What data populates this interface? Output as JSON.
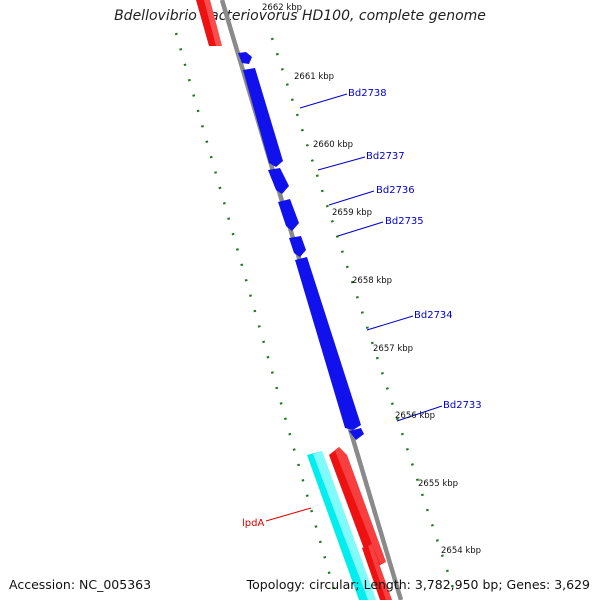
{
  "map": {
    "title": "Bdellovibrio bacteriovorus HD100, complete genome",
    "accession": "Accession: NC_005363",
    "summary": "Topology: circular; Length: 3,782,950 bp; Genes: 3,629",
    "colors": {
      "forward_gene": "#ee1111",
      "reverse_gene": "#1111ee",
      "rna_gene": "#00eeee",
      "backbone": "#888888",
      "ticks": "#1a7a1a",
      "forward_label": "#dd0000",
      "reverse_label": "#0000cc"
    },
    "ticks": [
      {
        "label": "2662 kbp"
      },
      {
        "label": "2661 kbp"
      },
      {
        "label": "2660 kbp"
      },
      {
        "label": "2659 kbp"
      },
      {
        "label": "2658 kbp"
      },
      {
        "label": "2657 kbp"
      },
      {
        "label": "2656 kbp"
      },
      {
        "label": "2655 kbp"
      },
      {
        "label": "2654 kbp"
      }
    ],
    "genes": [
      {
        "label": "Bd2738",
        "strand": "reverse"
      },
      {
        "label": "Bd2737",
        "strand": "reverse"
      },
      {
        "label": "Bd2736",
        "strand": "reverse"
      },
      {
        "label": "Bd2735",
        "strand": "reverse"
      },
      {
        "label": "Bd2734",
        "strand": "reverse"
      },
      {
        "label": "Bd2733",
        "strand": "reverse"
      },
      {
        "label": "lpdA",
        "strand": "forward"
      }
    ]
  }
}
